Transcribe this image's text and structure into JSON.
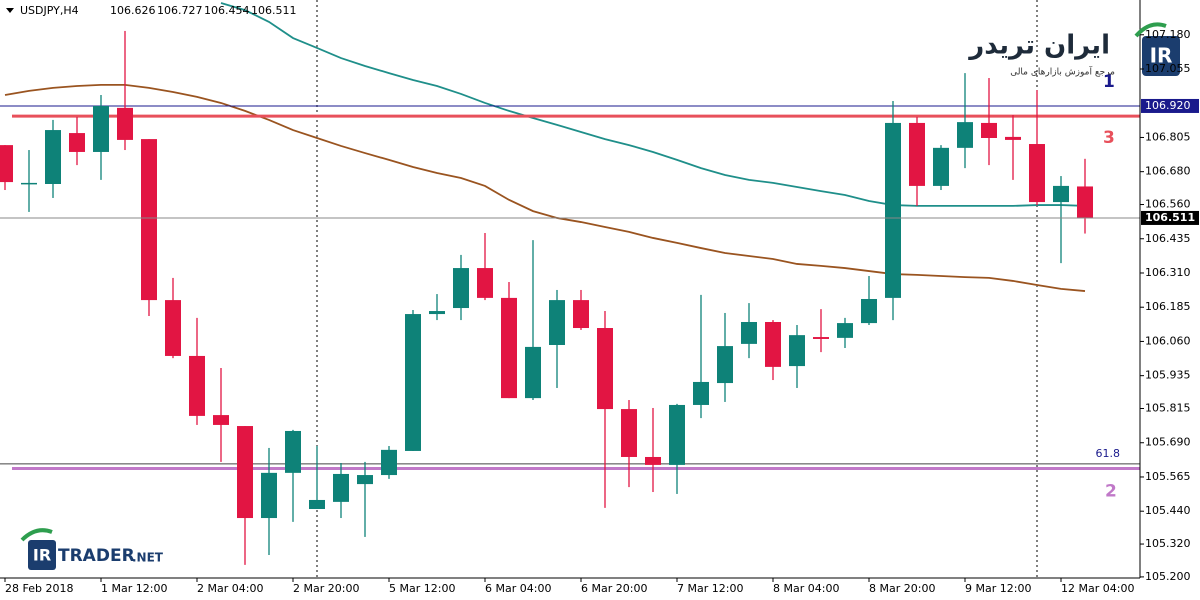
{
  "chart_data": {
    "type": "candlestick",
    "title": "USDJPY,H4",
    "categories": [
      "28 Feb 2018",
      null,
      null,
      null,
      "1 Mar 12:00",
      null,
      null,
      null,
      "2 Mar 04:00",
      null,
      null,
      null,
      "2 Mar 20:00",
      null,
      null,
      null,
      "5 Mar 12:00",
      null,
      null,
      null,
      "6 Mar 04:00",
      null,
      null,
      null,
      "6 Mar 20:00",
      null,
      null,
      null,
      "7 Mar 12:00",
      null,
      null,
      null,
      "8 Mar 04:00",
      null,
      null,
      null,
      "8 Mar 20:00",
      null,
      null,
      null,
      "9 Mar 12:00",
      null,
      null,
      null,
      "12 Mar 04:00",
      null
    ],
    "open": [
      106.777,
      106.639,
      106.635,
      106.821,
      106.752,
      106.913,
      106.799,
      106.211,
      106.007,
      105.791,
      105.751,
      105.415,
      105.58,
      105.448,
      105.474,
      105.539,
      105.572,
      105.66,
      106.16,
      106.182,
      106.328,
      106.219,
      105.853,
      106.047,
      106.211,
      106.109,
      105.813,
      105.638,
      105.609,
      105.828,
      105.908,
      106.051,
      106.131,
      105.97,
      106.076,
      106.073,
      106.127,
      106.219,
      106.858,
      106.628,
      106.767,
      106.858,
      106.807,
      106.781,
      106.569,
      106.626
    ],
    "high": [
      106.777,
      106.759,
      106.869,
      106.88,
      106.96,
      107.194,
      106.799,
      106.292,
      106.146,
      105.963,
      105.751,
      105.671,
      105.737,
      105.678,
      105.616,
      105.62,
      105.678,
      106.175,
      106.233,
      106.376,
      106.456,
      106.277,
      106.43,
      106.248,
      106.248,
      106.171,
      105.846,
      105.817,
      105.832,
      106.23,
      106.164,
      106.2,
      106.138,
      106.12,
      106.178,
      106.146,
      106.299,
      106.938,
      106.88,
      106.777,
      107.04,
      107.022,
      106.887,
      106.978,
      106.664,
      106.727
    ],
    "low": [
      106.613,
      106.533,
      106.584,
      106.704,
      106.65,
      106.759,
      106.153,
      105.999,
      105.755,
      105.62,
      105.244,
      105.28,
      105.401,
      105.448,
      105.415,
      105.346,
      105.558,
      105.66,
      106.138,
      106.138,
      106.211,
      105.853,
      105.846,
      105.89,
      106.102,
      105.452,
      105.528,
      105.51,
      105.503,
      105.78,
      105.839,
      105.999,
      105.919,
      105.89,
      106.021,
      106.036,
      106.12,
      106.138,
      106.555,
      106.613,
      106.693,
      106.704,
      106.65,
      106.558,
      106.346,
      106.454
    ],
    "close": [
      106.642,
      106.639,
      106.832,
      106.752,
      106.92,
      106.796,
      106.211,
      106.007,
      105.788,
      105.755,
      105.415,
      105.58,
      105.733,
      105.481,
      105.576,
      105.572,
      105.664,
      106.16,
      106.171,
      106.328,
      106.219,
      105.853,
      106.04,
      106.211,
      106.109,
      105.813,
      105.638,
      105.609,
      105.828,
      105.912,
      106.043,
      106.131,
      105.967,
      106.083,
      106.069,
      106.127,
      106.215,
      106.858,
      106.628,
      106.767,
      106.861,
      106.803,
      106.796,
      106.569,
      106.628,
      106.511
    ],
    "up_color": "#0e8278",
    "down_color": "#e21543",
    "series": [
      {
        "color": "#1f8f8a",
        "values": [
          null,
          null,
          null,
          null,
          null,
          null,
          null,
          null,
          null,
          107.296,
          107.27,
          107.227,
          107.168,
          107.132,
          107.095,
          107.066,
          107.04,
          107.015,
          106.993,
          106.964,
          106.931,
          106.902,
          106.876,
          106.851,
          106.825,
          106.799,
          106.777,
          106.752,
          106.723,
          106.693,
          106.668,
          106.65,
          106.639,
          106.624,
          106.609,
          106.595,
          106.573,
          106.558,
          106.555,
          106.555,
          106.555,
          106.555,
          106.555,
          106.558,
          106.558,
          106.555
        ]
      },
      {
        "color": "#9a5420",
        "values": [
          106.96,
          106.975,
          106.986,
          106.993,
          106.997,
          106.997,
          106.986,
          106.971,
          106.953,
          106.931,
          106.902,
          106.869,
          106.832,
          106.803,
          106.774,
          106.748,
          106.723,
          106.697,
          106.675,
          106.657,
          106.628,
          106.577,
          106.536,
          106.511,
          106.496,
          106.478,
          106.46,
          106.438,
          106.42,
          106.401,
          106.383,
          106.372,
          106.361,
          106.343,
          106.336,
          106.328,
          106.317,
          106.306,
          106.303,
          106.299,
          106.295,
          106.292,
          106.281,
          106.266,
          106.252,
          106.244
        ]
      }
    ],
    "hlines": [
      {
        "value": 106.92,
        "label": "106.920",
        "annotation": "1",
        "color": "#1a1a8c"
      },
      {
        "value": 106.883,
        "annotation": "3",
        "color": "#e8505b"
      },
      {
        "value": 105.613,
        "annotation": "61.8",
        "color": "#444444"
      },
      {
        "value": 105.596,
        "annotation": "2",
        "color": "#c078c8"
      }
    ],
    "ylim": [
      105.196,
      107.307
    ],
    "yticks": [
      {
        "value": 107.18,
        "label": "107.180"
      },
      107.055,
      106.805,
      {
        "value": 106.68,
        "label": "106.680"
      },
      {
        "value": 106.56,
        "label": "106.560"
      },
      106.435,
      {
        "value": 106.31,
        "label": "106.310"
      },
      106.185,
      {
        "value": 106.06,
        "label": "106.060"
      },
      105.935,
      105.815,
      {
        "value": 105.69,
        "label": "105.690"
      },
      105.565,
      {
        "value": 105.44,
        "label": "105.440"
      },
      {
        "value": 105.32,
        "label": "105.320"
      },
      {
        "value": 105.2,
        "label": "105.200"
      }
    ],
    "grid": false
  },
  "logo": {
    "name": "ایران تریدر",
    "tagline": "مرجع آموزش بازارهای مالی",
    "mark": "IR"
  },
  "watermark": {
    "ir": "IR",
    "trader": "TRADER",
    "net": ".NET"
  }
}
